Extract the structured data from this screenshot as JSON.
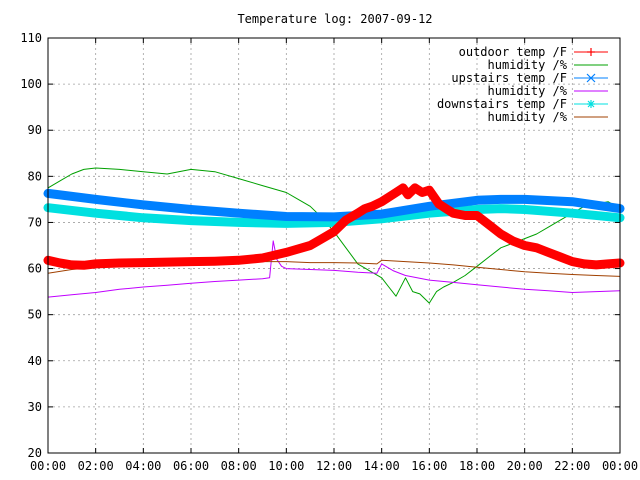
{
  "chart_data": {
    "type": "line",
    "title": "Temperature log: 2007-09-12",
    "xlabel": "",
    "ylabel": "",
    "xlim": [
      0,
      24
    ],
    "ylim": [
      20,
      110
    ],
    "grid": true,
    "legend_position": "top-right",
    "x_ticks": [
      "00:00",
      "02:00",
      "04:00",
      "06:00",
      "08:00",
      "10:00",
      "12:00",
      "14:00",
      "16:00",
      "18:00",
      "20:00",
      "22:00",
      "00:00"
    ],
    "y_ticks": [
      20,
      30,
      40,
      50,
      60,
      70,
      80,
      90,
      100,
      110
    ],
    "series": [
      {
        "name": "outdoor temp /F",
        "color": "#ff0000",
        "style": "thick",
        "x": [
          0,
          0.5,
          1,
          1.5,
          2,
          3,
          4,
          5,
          6,
          7,
          8,
          9,
          10,
          11,
          11.5,
          12,
          12.5,
          13,
          13.3,
          13.6,
          14,
          14.3,
          14.6,
          14.9,
          15.1,
          15.4,
          15.7,
          16,
          16.2,
          16.4,
          16.7,
          17,
          17.5,
          18,
          18.5,
          19,
          19.5,
          20,
          20.5,
          21,
          21.5,
          22,
          22.5,
          23,
          23.5,
          24
        ],
        "y": [
          61.8,
          61.2,
          60.8,
          60.7,
          61.0,
          61.2,
          61.3,
          61.4,
          61.5,
          61.6,
          61.8,
          62.3,
          63.5,
          65.0,
          66.5,
          68.0,
          70.5,
          72.0,
          73.0,
          73.5,
          74.5,
          75.5,
          76.5,
          77.5,
          76.0,
          77.5,
          76.5,
          77.0,
          75.5,
          74.0,
          73.0,
          72.0,
          71.5,
          71.5,
          69.5,
          67.5,
          66.0,
          65.0,
          64.5,
          63.5,
          62.5,
          61.5,
          61.0,
          60.8,
          61.0,
          61.2
        ]
      },
      {
        "name": "humidity /%",
        "color": "#00a000",
        "style": "thin",
        "x": [
          0,
          0.5,
          1,
          1.5,
          2,
          3,
          4,
          5,
          6,
          7,
          8,
          9,
          10,
          10.5,
          11,
          11.5,
          12,
          12.5,
          13,
          13.5,
          14,
          14.3,
          14.6,
          15,
          15.3,
          15.6,
          16,
          16.3,
          16.6,
          17,
          17.5,
          18,
          18.5,
          19,
          19.5,
          20,
          20.5,
          21,
          21.5,
          22,
          22.5,
          23,
          23.5,
          24
        ],
        "y": [
          77.5,
          79.0,
          80.5,
          81.5,
          81.8,
          81.5,
          81.0,
          80.5,
          81.5,
          81.0,
          79.5,
          78.0,
          76.5,
          75.0,
          73.5,
          71.0,
          68.0,
          64.5,
          61.0,
          59.5,
          58.0,
          56.0,
          54.0,
          58.0,
          55.0,
          54.5,
          52.5,
          55.0,
          56.0,
          57.0,
          58.5,
          60.5,
          62.5,
          64.5,
          65.5,
          66.5,
          67.5,
          69.0,
          70.5,
          72.0,
          73.5,
          74.0,
          74.5,
          73.0
        ]
      },
      {
        "name": "upstairs temp /F",
        "color": "#0080ff",
        "style": "thick",
        "x": [
          0,
          2,
          4,
          6,
          8,
          10,
          12,
          14,
          16,
          18,
          19,
          20,
          22,
          24
        ],
        "y": [
          76.3,
          75.0,
          73.8,
          72.8,
          72.0,
          71.3,
          71.2,
          71.8,
          73.5,
          74.8,
          75.0,
          75.0,
          74.5,
          73.0
        ]
      },
      {
        "name": "humidity /%",
        "color": "#c000ff",
        "style": "thin",
        "x": [
          0,
          1,
          2,
          3,
          4,
          5,
          6,
          7,
          8,
          9,
          9.3,
          9.45,
          9.6,
          9.8,
          10,
          11,
          12,
          13,
          13.8,
          14,
          14.5,
          15,
          16,
          17,
          18,
          19,
          20,
          21,
          22,
          23,
          24
        ],
        "y": [
          53.8,
          54.3,
          54.8,
          55.5,
          56.0,
          56.4,
          56.8,
          57.2,
          57.5,
          57.8,
          58.0,
          66.0,
          62.0,
          60.5,
          60.0,
          59.8,
          59.6,
          59.2,
          59.0,
          61.0,
          59.5,
          58.5,
          57.5,
          57.0,
          56.5,
          56.0,
          55.5,
          55.2,
          54.8,
          55.0,
          55.2
        ]
      },
      {
        "name": "downstairs temp /F",
        "color": "#00e0e0",
        "style": "thick",
        "x": [
          0,
          2,
          4,
          6,
          8,
          10,
          12,
          14,
          16,
          18,
          19,
          20,
          22,
          24
        ],
        "y": [
          73.2,
          72.0,
          71.0,
          70.4,
          70.0,
          69.8,
          70.0,
          70.8,
          72.0,
          72.8,
          73.0,
          72.8,
          72.0,
          71.0
        ]
      },
      {
        "name": "humidity /%",
        "color": "#a04000",
        "style": "thin",
        "x": [
          0,
          1,
          2,
          3,
          4,
          5,
          6,
          7,
          8,
          9,
          10,
          11,
          12,
          13,
          13.8,
          14,
          15,
          16,
          17,
          18,
          19,
          20,
          21,
          22,
          23,
          24
        ],
        "y": [
          59.0,
          59.8,
          60.3,
          60.6,
          60.8,
          61.0,
          61.2,
          61.3,
          61.3,
          61.5,
          61.5,
          61.3,
          61.3,
          61.2,
          61.0,
          61.8,
          61.5,
          61.2,
          60.8,
          60.3,
          59.8,
          59.3,
          59.0,
          58.7,
          58.5,
          58.3
        ]
      }
    ]
  }
}
